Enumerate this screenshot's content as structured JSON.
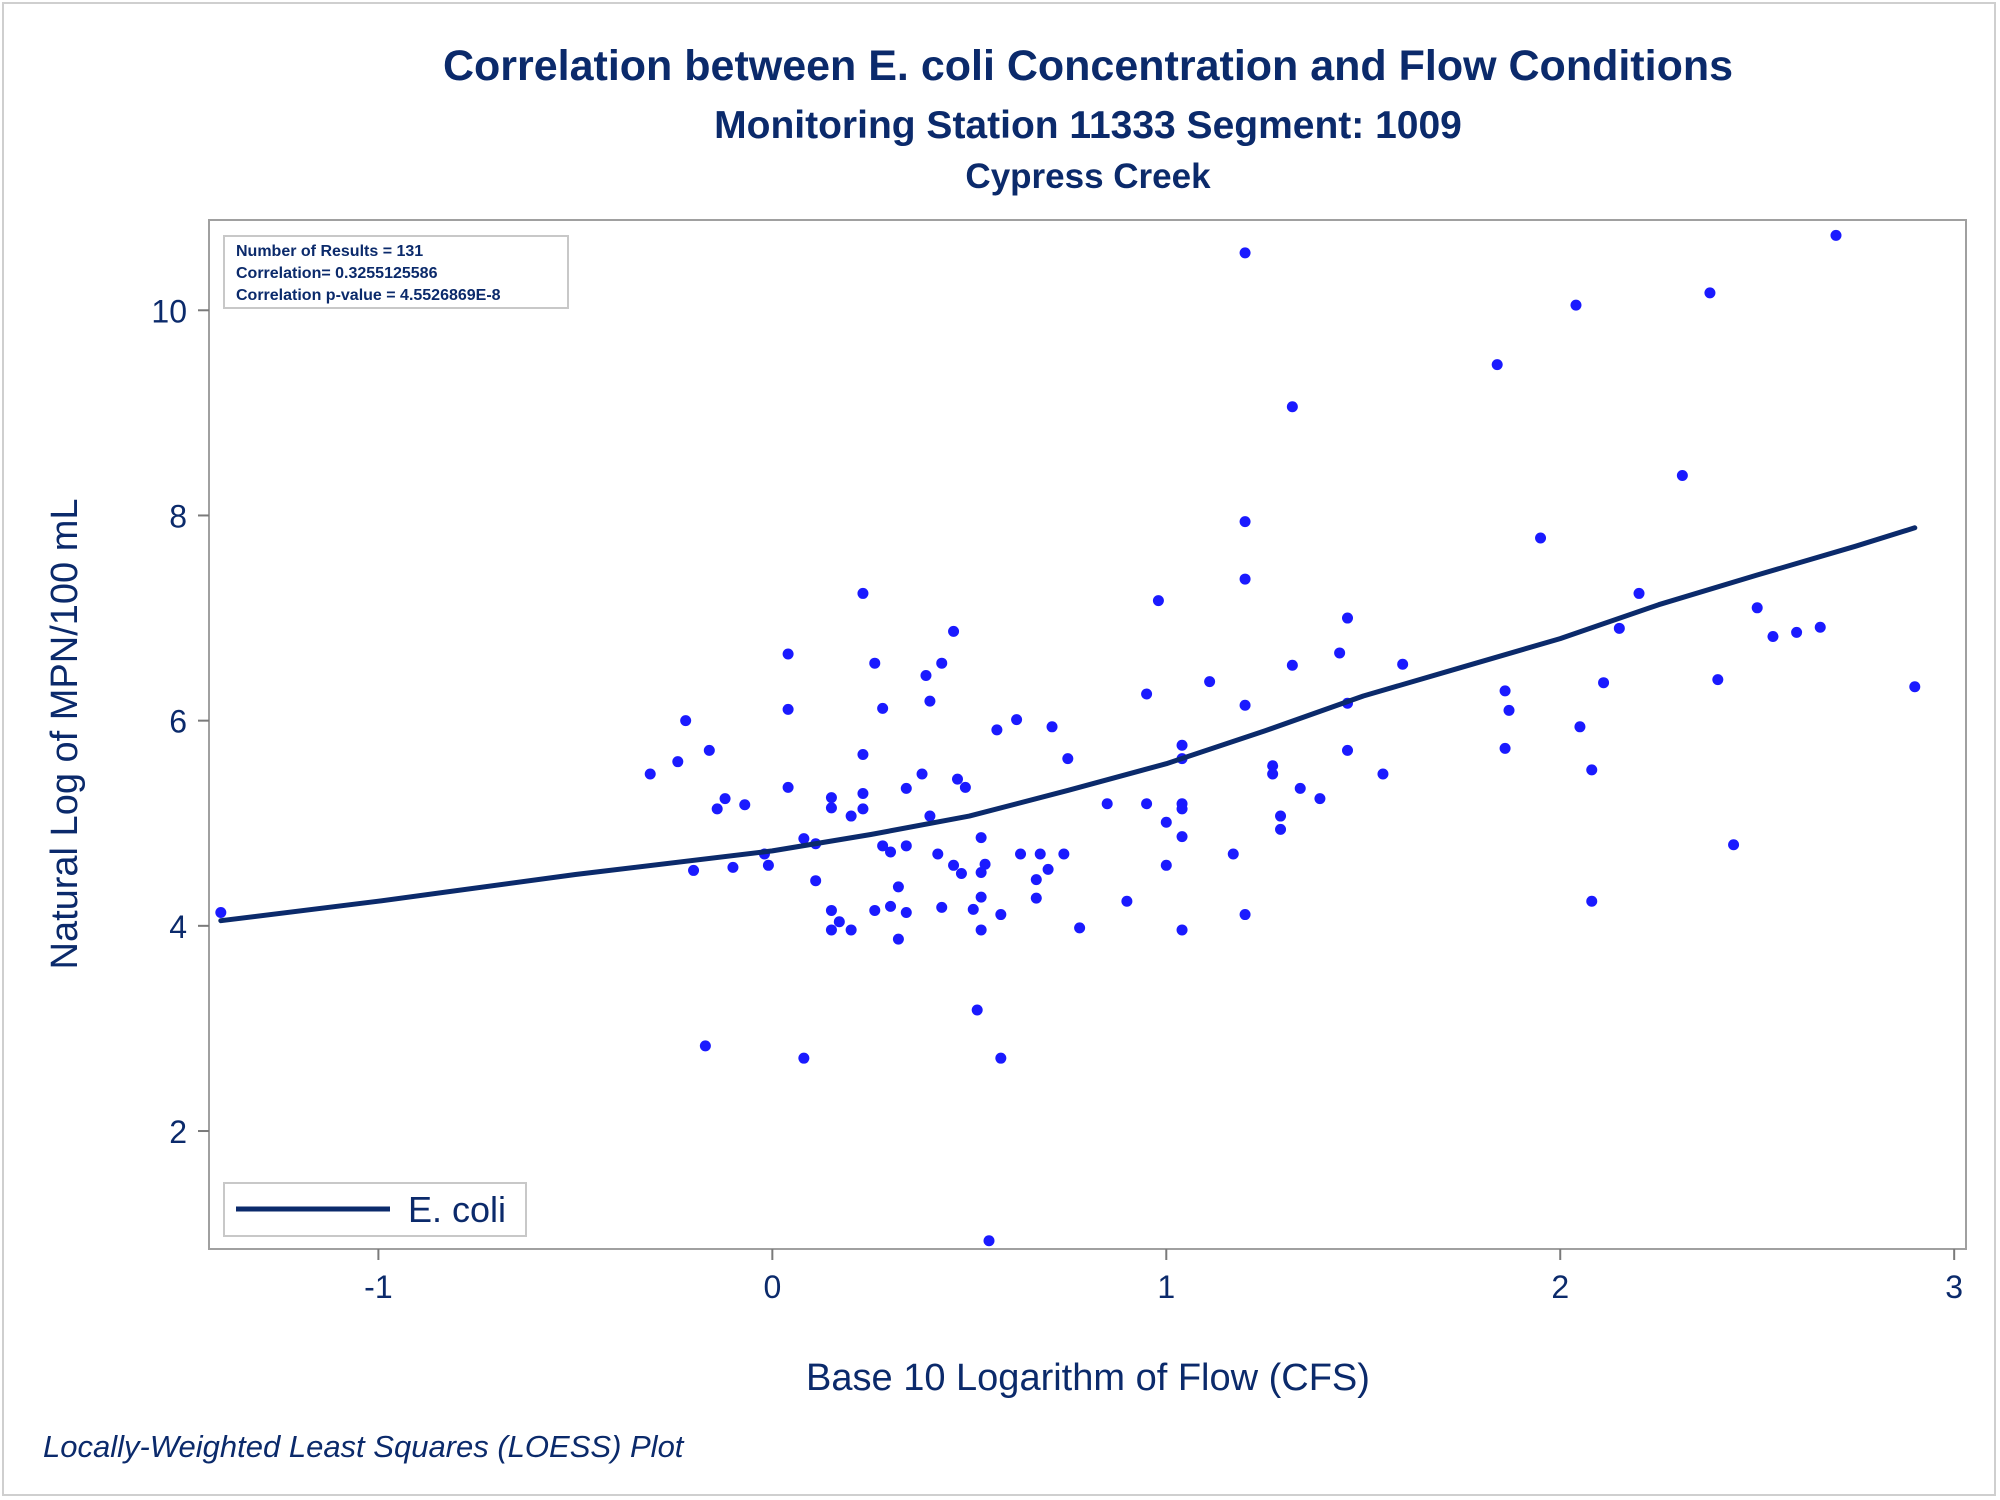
{
  "chart_data": {
    "type": "scatter",
    "title": "Correlation between E. coli Concentration and Flow Conditions",
    "subtitle": "Monitoring Station 11333 Segment: 1009",
    "subtitle2": "Cypress Creek",
    "xlabel": "Base 10 Logarithm of Flow (CFS)",
    "ylabel": "Natural Log of MPN/100 mL",
    "footnote": "Locally-Weighted Least Squares (LOESS) Plot",
    "xlim": [
      -1.43,
      3.03
    ],
    "ylim": [
      0.85,
      10.88
    ],
    "xticks": [
      -1,
      0,
      1,
      2,
      3
    ],
    "yticks": [
      2,
      4,
      6,
      8,
      10
    ],
    "xtick_labels": [
      "-1",
      "0",
      "1",
      "2",
      "3"
    ],
    "ytick_labels": [
      "2",
      "4",
      "6",
      "8",
      "10"
    ],
    "grid": false,
    "legend_position": "bottom-left",
    "legend": [
      "E. coli"
    ],
    "stats": [
      "Number of Results = 131",
      "Correlation= 0.3255125586",
      "Correlation p-value = 4.5526869E-8"
    ],
    "colors": {
      "points": "#1a1aff",
      "curve": "#0b2a6b",
      "text": "#0b2a6b",
      "frame": "#a0a0a0"
    },
    "points": [
      [
        -1.4,
        4.13
      ],
      [
        -0.31,
        5.48
      ],
      [
        -0.24,
        5.6
      ],
      [
        -0.22,
        6.0
      ],
      [
        -0.2,
        4.54
      ],
      [
        -0.17,
        2.83
      ],
      [
        -0.16,
        5.71
      ],
      [
        -0.14,
        5.14
      ],
      [
        -0.12,
        5.24
      ],
      [
        -0.1,
        4.57
      ],
      [
        -0.07,
        5.18
      ],
      [
        -0.02,
        4.7
      ],
      [
        -0.01,
        4.59
      ],
      [
        0.04,
        6.65
      ],
      [
        0.04,
        6.11
      ],
      [
        0.04,
        5.35
      ],
      [
        0.08,
        4.85
      ],
      [
        0.08,
        2.71
      ],
      [
        0.11,
        4.8
      ],
      [
        0.11,
        4.44
      ],
      [
        0.15,
        5.25
      ],
      [
        0.15,
        5.15
      ],
      [
        0.15,
        4.15
      ],
      [
        0.15,
        3.96
      ],
      [
        0.17,
        4.04
      ],
      [
        0.2,
        5.07
      ],
      [
        0.2,
        3.96
      ],
      [
        0.23,
        7.24
      ],
      [
        0.23,
        5.67
      ],
      [
        0.23,
        5.29
      ],
      [
        0.23,
        5.14
      ],
      [
        0.26,
        6.56
      ],
      [
        0.26,
        4.15
      ],
      [
        0.28,
        6.12
      ],
      [
        0.28,
        4.78
      ],
      [
        0.3,
        4.72
      ],
      [
        0.3,
        4.19
      ],
      [
        0.32,
        4.38
      ],
      [
        0.32,
        3.87
      ],
      [
        0.34,
        5.34
      ],
      [
        0.34,
        4.78
      ],
      [
        0.34,
        4.13
      ],
      [
        0.38,
        5.48
      ],
      [
        0.39,
        6.44
      ],
      [
        0.4,
        6.19
      ],
      [
        0.4,
        5.07
      ],
      [
        0.42,
        4.7
      ],
      [
        0.43,
        6.56
      ],
      [
        0.43,
        4.18
      ],
      [
        0.46,
        6.87
      ],
      [
        0.46,
        4.59
      ],
      [
        0.47,
        5.43
      ],
      [
        0.48,
        4.51
      ],
      [
        0.49,
        5.35
      ],
      [
        0.51,
        4.16
      ],
      [
        0.52,
        3.18
      ],
      [
        0.53,
        4.86
      ],
      [
        0.53,
        4.52
      ],
      [
        0.53,
        4.28
      ],
      [
        0.53,
        3.96
      ],
      [
        0.54,
        4.6
      ],
      [
        0.55,
        0.93
      ],
      [
        0.57,
        5.91
      ],
      [
        0.58,
        4.11
      ],
      [
        0.58,
        2.71
      ],
      [
        0.62,
        6.01
      ],
      [
        0.63,
        4.7
      ],
      [
        0.67,
        4.45
      ],
      [
        0.67,
        4.27
      ],
      [
        0.68,
        4.7
      ],
      [
        0.7,
        4.55
      ],
      [
        0.71,
        5.94
      ],
      [
        0.74,
        4.7
      ],
      [
        0.75,
        5.63
      ],
      [
        0.78,
        3.98
      ],
      [
        0.85,
        5.19
      ],
      [
        0.9,
        4.24
      ],
      [
        0.95,
        6.26
      ],
      [
        0.95,
        5.19
      ],
      [
        0.98,
        7.17
      ],
      [
        1.0,
        5.01
      ],
      [
        1.0,
        4.59
      ],
      [
        1.04,
        5.76
      ],
      [
        1.04,
        5.63
      ],
      [
        1.04,
        5.19
      ],
      [
        1.04,
        5.14
      ],
      [
        1.04,
        4.87
      ],
      [
        1.04,
        3.96
      ],
      [
        1.11,
        6.38
      ],
      [
        1.17,
        4.7
      ],
      [
        1.2,
        10.56
      ],
      [
        1.2,
        7.94
      ],
      [
        1.2,
        7.38
      ],
      [
        1.2,
        6.15
      ],
      [
        1.2,
        4.11
      ],
      [
        1.27,
        5.56
      ],
      [
        1.27,
        5.48
      ],
      [
        1.29,
        5.07
      ],
      [
        1.29,
        4.94
      ],
      [
        1.32,
        9.06
      ],
      [
        1.32,
        6.54
      ],
      [
        1.34,
        5.34
      ],
      [
        1.39,
        5.24
      ],
      [
        1.44,
        6.66
      ],
      [
        1.46,
        7.0
      ],
      [
        1.46,
        6.17
      ],
      [
        1.46,
        5.71
      ],
      [
        1.55,
        5.48
      ],
      [
        1.6,
        6.55
      ],
      [
        1.84,
        9.47
      ],
      [
        1.86,
        6.29
      ],
      [
        1.86,
        5.73
      ],
      [
        1.87,
        6.1
      ],
      [
        1.95,
        7.78
      ],
      [
        2.04,
        10.05
      ],
      [
        2.05,
        5.94
      ],
      [
        2.08,
        5.52
      ],
      [
        2.08,
        4.24
      ],
      [
        2.11,
        6.37
      ],
      [
        2.15,
        6.9
      ],
      [
        2.2,
        7.24
      ],
      [
        2.31,
        8.39
      ],
      [
        2.38,
        10.17
      ],
      [
        2.4,
        6.4
      ],
      [
        2.44,
        4.79
      ],
      [
        2.5,
        7.1
      ],
      [
        2.54,
        6.82
      ],
      [
        2.6,
        6.86
      ],
      [
        2.66,
        6.91
      ],
      [
        2.7,
        10.73
      ],
      [
        2.9,
        6.33
      ]
    ],
    "loess": [
      [
        -1.4,
        4.05
      ],
      [
        -1.0,
        4.24
      ],
      [
        -0.5,
        4.5
      ],
      [
        0.0,
        4.73
      ],
      [
        0.25,
        4.89
      ],
      [
        0.5,
        5.07
      ],
      [
        0.75,
        5.32
      ],
      [
        1.0,
        5.58
      ],
      [
        1.25,
        5.9
      ],
      [
        1.5,
        6.24
      ],
      [
        1.75,
        6.52
      ],
      [
        2.0,
        6.8
      ],
      [
        2.25,
        7.13
      ],
      [
        2.5,
        7.42
      ],
      [
        2.75,
        7.7
      ],
      [
        2.9,
        7.88
      ]
    ]
  }
}
